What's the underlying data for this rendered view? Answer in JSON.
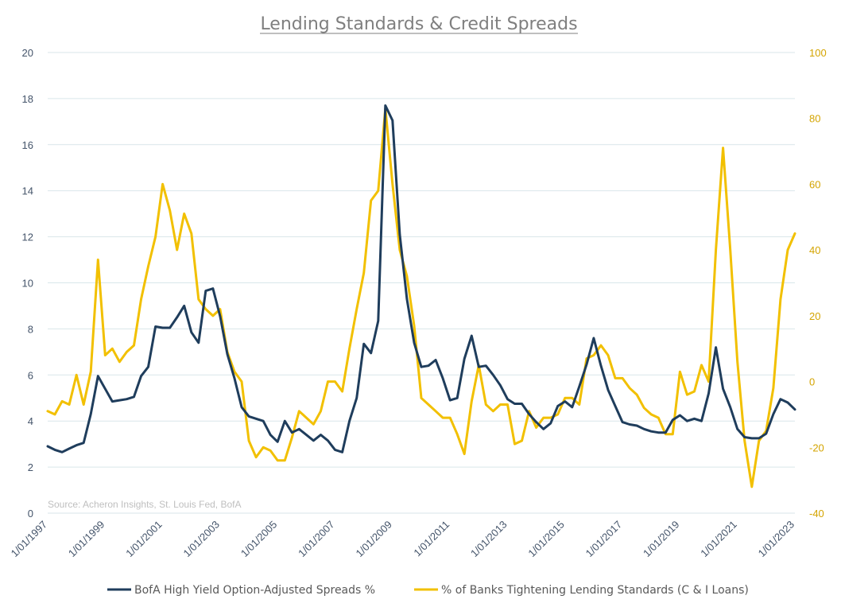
{
  "chart_data": {
    "type": "line",
    "title": "Lending Standards & Credit Spreads",
    "source": "Source: Acheron Insights, St. Louis Fed, BofA",
    "x_ticks": [
      "1/01/1997",
      "1/01/1999",
      "1/01/2001",
      "1/01/2003",
      "1/01/2005",
      "1/01/2007",
      "1/01/2009",
      "1/01/2011",
      "1/01/2013",
      "1/01/2015",
      "1/01/2017",
      "1/01/2019",
      "1/01/2021",
      "1/01/2023"
    ],
    "x_range": [
      1997.0,
      2023.0
    ],
    "y_left": {
      "range": [
        0,
        20
      ],
      "ticks": [
        0,
        2,
        4,
        6,
        8,
        10,
        12,
        14,
        16,
        18,
        20
      ]
    },
    "y_right": {
      "range": [
        -40,
        100
      ],
      "ticks": [
        -40,
        -20,
        0,
        20,
        40,
        60,
        80,
        100
      ]
    },
    "grid": true,
    "legend_position": "bottom",
    "colors": {
      "spread": "#1f3d5c",
      "standards": "#f2c000"
    },
    "series": [
      {
        "name": "BofA High Yield Option-Adjusted Spreads %",
        "axis": "left",
        "x": [
          1997.0,
          1997.25,
          1997.5,
          1997.75,
          1998.0,
          1998.25,
          1998.5,
          1998.75,
          1999.0,
          1999.25,
          1999.5,
          1999.75,
          2000.0,
          2000.25,
          2000.5,
          2000.75,
          2001.0,
          2001.25,
          2001.5,
          2001.75,
          2002.0,
          2002.25,
          2002.5,
          2002.75,
          2003.0,
          2003.25,
          2003.5,
          2003.75,
          2004.0,
          2004.25,
          2004.5,
          2004.75,
          2005.0,
          2005.25,
          2005.5,
          2005.75,
          2006.0,
          2006.25,
          2006.5,
          2006.75,
          2007.0,
          2007.25,
          2007.5,
          2007.75,
          2008.0,
          2008.25,
          2008.5,
          2008.75,
          2009.0,
          2009.25,
          2009.5,
          2009.75,
          2010.0,
          2010.25,
          2010.5,
          2010.75,
          2011.0,
          2011.25,
          2011.5,
          2011.75,
          2012.0,
          2012.25,
          2012.5,
          2012.75,
          2013.0,
          2013.25,
          2013.5,
          2013.75,
          2014.0,
          2014.25,
          2014.5,
          2014.75,
          2015.0,
          2015.25,
          2015.5,
          2015.75,
          2016.0,
          2016.25,
          2016.5,
          2016.75,
          2017.0,
          2017.25,
          2017.5,
          2017.75,
          2018.0,
          2018.25,
          2018.5,
          2018.75,
          2019.0,
          2019.25,
          2019.5,
          2019.75,
          2020.0,
          2020.25,
          2020.5,
          2020.75,
          2021.0,
          2021.25,
          2021.5,
          2021.75,
          2022.0,
          2022.25,
          2022.5,
          2022.75,
          2023.0
        ],
        "values": [
          2.9,
          2.75,
          2.65,
          2.8,
          2.95,
          3.05,
          4.3,
          5.95,
          5.4,
          4.85,
          4.9,
          4.95,
          5.05,
          5.95,
          6.35,
          8.1,
          8.05,
          8.05,
          8.5,
          9.0,
          7.85,
          7.4,
          9.65,
          9.75,
          8.55,
          6.9,
          5.85,
          4.6,
          4.2,
          4.1,
          4.0,
          3.4,
          3.1,
          4.0,
          3.5,
          3.65,
          3.4,
          3.15,
          3.4,
          3.15,
          2.75,
          2.65,
          4.0,
          5.0,
          7.35,
          6.95,
          8.35,
          17.7,
          17.05,
          12.1,
          9.3,
          7.4,
          6.35,
          6.4,
          6.65,
          5.85,
          4.9,
          5.0,
          6.7,
          7.7,
          6.35,
          6.4,
          6.0,
          5.55,
          4.95,
          4.75,
          4.75,
          4.3,
          3.95,
          3.65,
          3.9,
          4.65,
          4.85,
          4.6,
          5.5,
          6.45,
          7.6,
          6.4,
          5.35,
          4.65,
          3.95,
          3.85,
          3.8,
          3.65,
          3.55,
          3.5,
          3.5,
          4.05,
          4.25,
          4.0,
          4.1,
          4.0,
          5.2,
          7.2,
          5.4,
          4.6,
          3.65,
          3.3,
          3.25,
          3.25,
          3.45,
          4.3,
          4.95,
          4.8,
          4.5
        ]
      },
      {
        "name": "% of Banks Tightening Lending Standards (C & I Loans)",
        "axis": "right",
        "x": [
          1997.0,
          1997.25,
          1997.5,
          1997.75,
          1998.0,
          1998.25,
          1998.5,
          1998.75,
          1999.0,
          1999.25,
          1999.5,
          1999.75,
          2000.0,
          2000.25,
          2000.5,
          2000.75,
          2001.0,
          2001.25,
          2001.5,
          2001.75,
          2002.0,
          2002.25,
          2002.5,
          2002.75,
          2003.0,
          2003.25,
          2003.5,
          2003.75,
          2004.0,
          2004.25,
          2004.5,
          2004.75,
          2005.0,
          2005.25,
          2005.5,
          2005.75,
          2006.0,
          2006.25,
          2006.5,
          2006.75,
          2007.0,
          2007.25,
          2007.5,
          2007.75,
          2008.0,
          2008.25,
          2008.5,
          2008.75,
          2009.0,
          2009.25,
          2009.5,
          2009.75,
          2010.0,
          2010.25,
          2010.5,
          2010.75,
          2011.0,
          2011.25,
          2011.5,
          2011.75,
          2012.0,
          2012.25,
          2012.5,
          2012.75,
          2013.0,
          2013.25,
          2013.5,
          2013.75,
          2014.0,
          2014.25,
          2014.5,
          2014.75,
          2015.0,
          2015.25,
          2015.5,
          2015.75,
          2016.0,
          2016.25,
          2016.5,
          2016.75,
          2017.0,
          2017.25,
          2017.5,
          2017.75,
          2018.0,
          2018.25,
          2018.5,
          2018.75,
          2019.0,
          2019.25,
          2019.5,
          2019.75,
          2020.0,
          2020.25,
          2020.5,
          2020.75,
          2021.0,
          2021.25,
          2021.5,
          2021.75,
          2022.0,
          2022.25,
          2022.5,
          2022.75,
          2023.0
        ],
        "values": [
          -9,
          -10,
          -6,
          -7,
          2,
          -7,
          3,
          37,
          8,
          10,
          6,
          9,
          11,
          25,
          35,
          44,
          60,
          52,
          40,
          51,
          45,
          25,
          22,
          20,
          22,
          9,
          3,
          0,
          -18,
          -23,
          -20,
          -21,
          -24,
          -24,
          -17,
          -9,
          -11,
          -13,
          -9,
          0,
          0,
          -3,
          10,
          22,
          33,
          55,
          58,
          83,
          60,
          40,
          32,
          17,
          -5,
          -7,
          -9,
          -11,
          -11,
          -16,
          -22,
          -6,
          5,
          -7,
          -9,
          -7,
          -7,
          -19,
          -18,
          -9,
          -14,
          -11,
          -11,
          -10,
          -5,
          -5,
          -7,
          7,
          8,
          11,
          8,
          1,
          1,
          -2,
          -4,
          -8,
          -10,
          -11,
          -16,
          -16,
          3,
          -4,
          -3,
          5,
          0,
          40,
          71,
          40,
          6,
          -18,
          -32,
          -18,
          -15,
          -2,
          25,
          40,
          45
        ]
      }
    ]
  }
}
